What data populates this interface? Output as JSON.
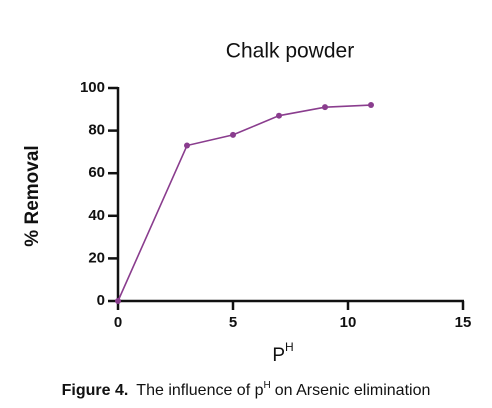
{
  "chart_data": {
    "type": "line",
    "title": "Chalk powder",
    "x": [
      0,
      3,
      5,
      7,
      9,
      11
    ],
    "series": [
      {
        "name": "Chalk powder",
        "color": "#8a3d8e",
        "values": [
          0,
          73,
          78,
          87,
          91,
          92
        ]
      }
    ],
    "xlim": [
      0,
      15
    ],
    "xticks": [
      0,
      5,
      10,
      15
    ],
    "ylim": [
      0,
      100
    ],
    "yticks": [
      0,
      20,
      40,
      60,
      80,
      100
    ],
    "ylabel": "% Removal",
    "xlabel": "P",
    "xlabel_sup": "H",
    "caption": {
      "label": "Figure 4.",
      "before": "The influence of p",
      "sup": "H",
      "after": "on Arsenic elimination"
    }
  }
}
